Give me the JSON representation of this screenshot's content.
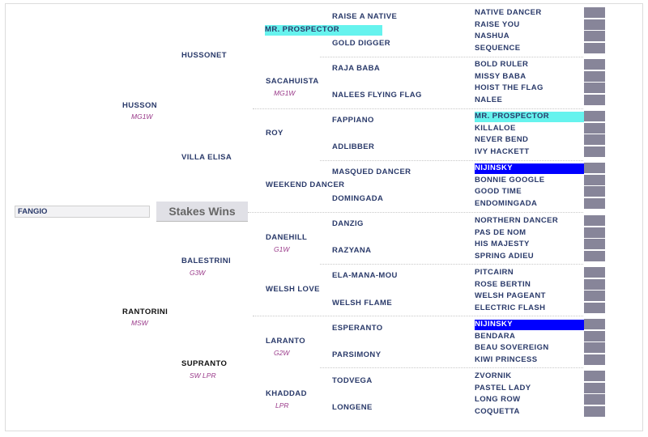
{
  "subject": {
    "name": "FANGIO"
  },
  "stakes_button": {
    "label": "Stakes Wins"
  },
  "colors": {
    "name_text": "#2a3a6a",
    "annotation": "#9a3a8a",
    "highlight_cyan": "#66f3ee",
    "highlight_blue": "#0000ff",
    "box": "#878599"
  },
  "gen1": {
    "sire": {
      "name": "HUSSON",
      "note": "MG1W"
    },
    "dam": {
      "name": "RANTORINI",
      "note": "MSW"
    }
  },
  "gen2": [
    {
      "name": "HUSSONET",
      "note": ""
    },
    {
      "name": "VILLA ELISA",
      "note": ""
    },
    {
      "name": "BALESTRINI",
      "note": "G3W"
    },
    {
      "name": "SUPRANTO",
      "note": "SW LPR"
    }
  ],
  "gen3": [
    {
      "name": "MR. PROSPECTOR",
      "note": ""
    },
    {
      "name": "SACAHUISTA",
      "note": "MG1W"
    },
    {
      "name": "ROY",
      "note": ""
    },
    {
      "name": "WEEKEND DANCER",
      "note": ""
    },
    {
      "name": "DANEHILL",
      "note": "G1W"
    },
    {
      "name": "WELSH LOVE",
      "note": ""
    },
    {
      "name": "LARANTO",
      "note": "G2W"
    },
    {
      "name": "KHADDAD",
      "note": "LPR"
    }
  ],
  "gen4": [
    "RAISE A NATIVE",
    "GOLD DIGGER",
    "RAJA BABA",
    "NALEES FLYING FLAG",
    "FAPPIANO",
    "ADLIBBER",
    "MASQUED DANCER",
    "DOMINGADA",
    "DANZIG",
    "RAZYANA",
    "ELA-MANA-MOU",
    "WELSH FLAME",
    "ESPERANTO",
    "PARSIMONY",
    "TODVEGA",
    "LONGENE"
  ],
  "gen5": [
    "NATIVE DANCER",
    "RAISE YOU",
    "NASHUA",
    "SEQUENCE",
    "BOLD RULER",
    "MISSY BABA",
    "HOIST THE FLAG",
    "NALEE",
    "MR. PROSPECTOR",
    "KILLALOE",
    "NEVER BEND",
    "IVY HACKETT",
    "NIJINSKY",
    "BONNIE GOOGLE",
    "GOOD TIME",
    "ENDOMINGADA",
    "NORTHERN DANCER",
    "PAS DE NOM",
    "HIS MAJESTY",
    "SPRING ADIEU",
    "PITCAIRN",
    "ROSE BERTIN",
    "WELSH PAGEANT",
    "ELECTRIC FLASH",
    "NIJINSKY",
    "BENDARA",
    "BEAU SOVEREIGN",
    "KIWI PRINCESS",
    "ZVORNIK",
    "PASTEL LADY",
    "LONG ROW",
    "COQUETTA"
  ]
}
